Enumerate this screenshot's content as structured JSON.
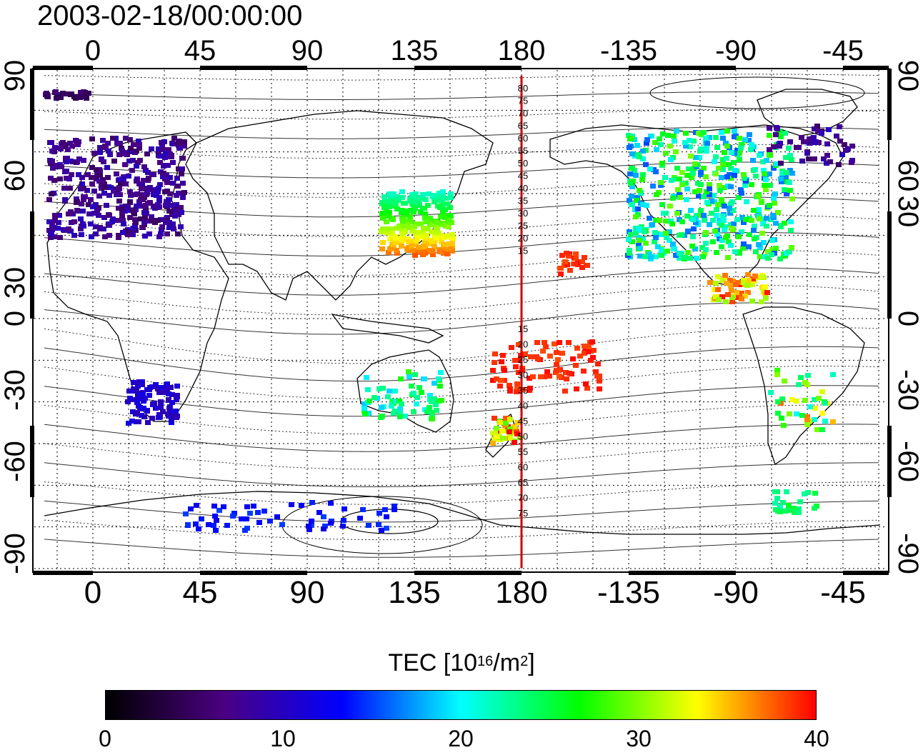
{
  "title": "2003-02-18/00:00:00",
  "top_lon_labels": [
    "0",
    "45",
    "90",
    "135",
    "180",
    "-135",
    "-90",
    "-45"
  ],
  "bottom_lon_labels": [
    "0",
    "45",
    "90",
    "135",
    "180",
    "-135",
    "-90",
    "-45"
  ],
  "left_lat_labels": [
    "90",
    "60",
    "30",
    "0",
    "-30",
    "-60",
    "-90"
  ],
  "right_lat_labels": [
    "90",
    "60",
    "30",
    "0",
    "-30",
    "-60",
    "-90"
  ],
  "contour_labels_north": [
    "80",
    "75",
    "70",
    "65",
    "60",
    "55",
    "50",
    "45",
    "40",
    "35",
    "30",
    "25",
    "20",
    "15"
  ],
  "contour_labels_south": [
    "15",
    "20",
    "25",
    "30",
    "35",
    "40",
    "45",
    "50",
    "55",
    "60",
    "65",
    "70",
    "75"
  ],
  "colorbar": {
    "label": "TEC  [10",
    "label_sup": "16",
    "label_mid": "/m",
    "label_sup2": "2",
    "label_end": "]",
    "ticks": [
      "0",
      "10",
      "20",
      "30",
      "40"
    ],
    "colors": [
      "#000000",
      "#4b0082",
      "#0000ff",
      "#00ffff",
      "#00ff00",
      "#ffff00",
      "#ff0000"
    ]
  },
  "meridian_line_color": "#cc0000"
}
